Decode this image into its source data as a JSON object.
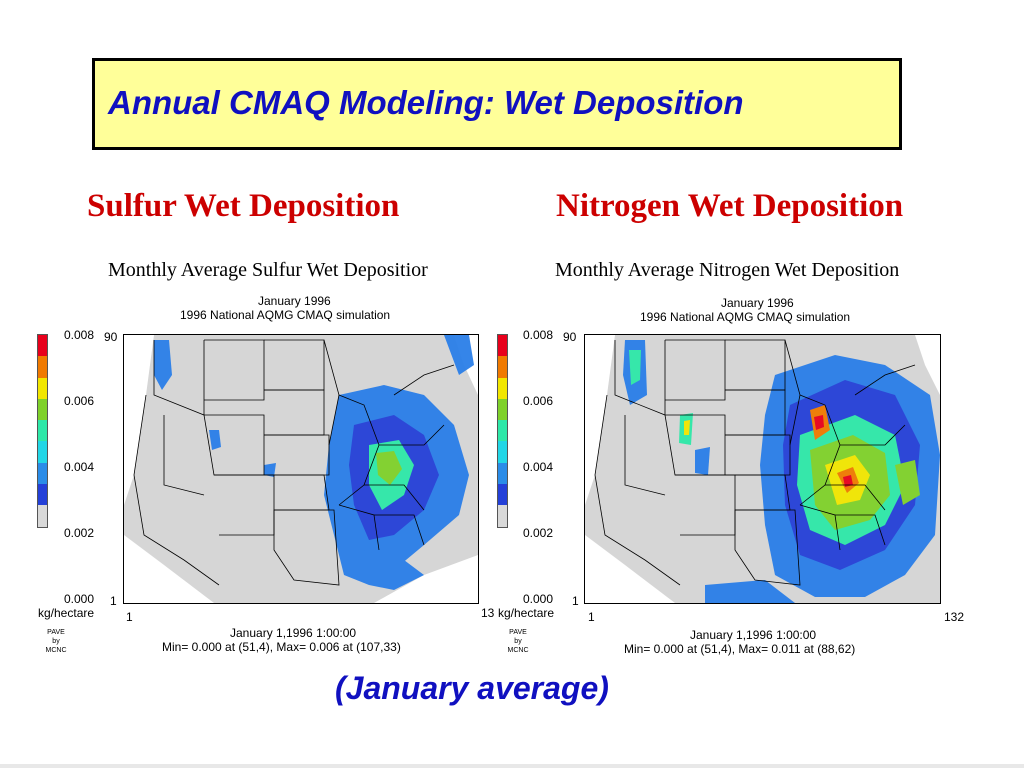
{
  "slide": {
    "title": "Annual CMAQ Modeling: Wet Deposition",
    "footer": "(January average)"
  },
  "panels": [
    {
      "heading": "Sulfur Wet Deposition",
      "plot_title": "Monthly Average Sulfur Wet Depositior",
      "date_line": "January 1996",
      "sim_line": "1996 National AQMG CMAQ simulation",
      "legend_ticks": [
        "0.008",
        "0.006",
        "0.004",
        "0.002",
        "0.000"
      ],
      "units": "kg/hectare",
      "grid_top": "90",
      "grid_bottom": "1",
      "grid_left": "1",
      "grid_right": "13",
      "timestamp": "January 1,1996 1:00:00",
      "minmax": "Min=   0.000 at (51,4), Max=   0.006 at (107,33)",
      "credit": [
        "PAVE",
        "by",
        "MCNC"
      ]
    },
    {
      "heading": "Nitrogen Wet Deposition",
      "plot_title": "Monthly Average Nitrogen Wet Deposition",
      "date_line": "January 1996",
      "sim_line": "1996 National AQMG CMAQ simulation",
      "legend_ticks": [
        "0.008",
        "0.006",
        "0.004",
        "0.002",
        "0.000"
      ],
      "units": "kg/hectare",
      "grid_top": "90",
      "grid_bottom": "1",
      "grid_left": "1",
      "grid_right": "132",
      "timestamp": "January 1,1996 1:00:00",
      "minmax": "Min=   0.000 at (51,4), Max=   0.011 at (88,62)",
      "credit": [
        "PAVE",
        "by",
        "MCNC"
      ]
    }
  ],
  "legend_colors": [
    "#e8001c",
    "#f07a00",
    "#f2e600",
    "#7fd12a",
    "#2ee8a8",
    "#22d6e6",
    "#2a8ce8",
    "#2440d8",
    "#d9d9d9"
  ]
}
